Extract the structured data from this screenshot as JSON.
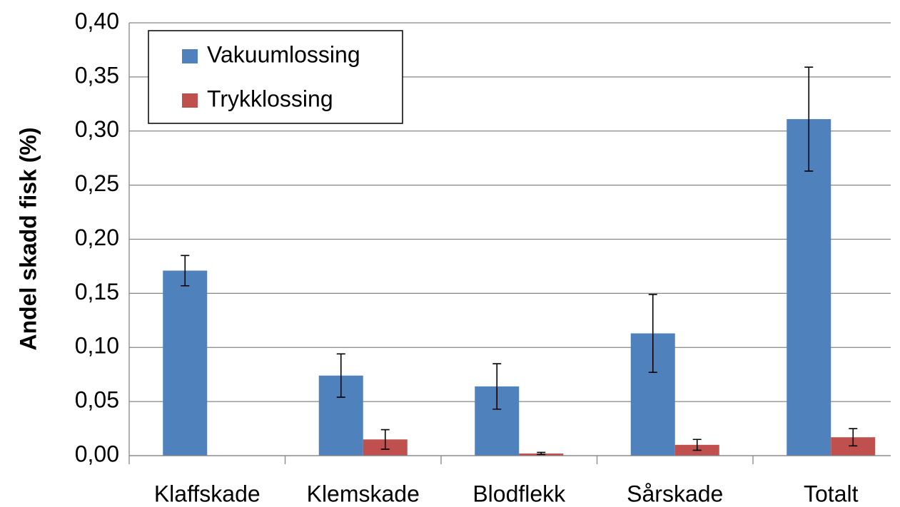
{
  "chart_data": {
    "type": "bar",
    "y_label": "Andel skadd fisk (%)",
    "categories": [
      "Klaffskade",
      "Klemskade",
      "Blodflekk",
      "Sårskade",
      "Totalt"
    ],
    "series": [
      {
        "name": "Vakuumlossing",
        "color": "#4f81bd",
        "values": [
          0.171,
          0.074,
          0.064,
          0.113,
          0.311
        ],
        "errors": [
          0.014,
          0.02,
          0.021,
          0.036,
          0.048
        ]
      },
      {
        "name": "Trykklossing",
        "color": "#c0504d",
        "values": [
          0,
          0.015,
          0.002,
          0.01,
          0.017
        ],
        "errors": [
          null,
          0.009,
          0.001,
          0.005,
          0.008
        ]
      }
    ],
    "ylim": [
      0,
      0.4
    ],
    "yticks": [
      {
        "value": 0,
        "label": "0,00"
      },
      {
        "value": 0.05,
        "label": "0,05"
      },
      {
        "value": 0.1,
        "label": "0,10"
      },
      {
        "value": 0.15,
        "label": "0,15"
      },
      {
        "value": 0.2,
        "label": "0,20"
      },
      {
        "value": 0.25,
        "label": "0,25"
      },
      {
        "value": 0.3,
        "label": "0,30"
      },
      {
        "value": 0.35,
        "label": "0,35"
      },
      {
        "value": 0.4,
        "label": "0,40"
      }
    ],
    "grid": true,
    "legend": "upper-left"
  }
}
